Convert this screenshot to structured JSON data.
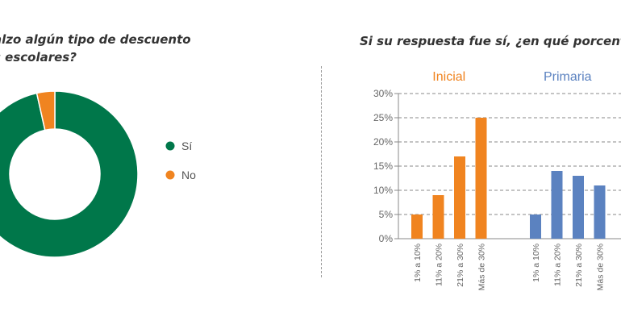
{
  "left_question": {
    "line1": "alzo algún tipo de descuento",
    "line2": "s escolares?"
  },
  "right_question": {
    "text": "Si su respuesta fue sí, ¿en qué porcent"
  },
  "chart_data": [
    {
      "type": "pie",
      "subtype": "donut",
      "labels": [
        "Sí",
        "No"
      ],
      "values": [
        96.5,
        3.5
      ],
      "colors": [
        "#00774a",
        "#f08420"
      ],
      "legend": "right"
    },
    {
      "type": "bar",
      "ylim": [
        0,
        30
      ],
      "yticks": [
        "0%",
        "5%",
        "10%",
        "15%",
        "20%",
        "25%",
        "30%"
      ],
      "grid": true,
      "groups": [
        {
          "name": "Inicial",
          "color": "#f08420",
          "categories": [
            "1% a 10%",
            "11% a 20%",
            "21% a 30%",
            "Más de 30%"
          ],
          "values": [
            5,
            9,
            17,
            25
          ]
        },
        {
          "name": "Primaria",
          "color": "#5b82c0",
          "categories": [
            "1% a 10%",
            "11% a 20%",
            "21% a 30%",
            "Más de 30%"
          ],
          "values": [
            5,
            14,
            13,
            11
          ]
        }
      ]
    }
  ]
}
